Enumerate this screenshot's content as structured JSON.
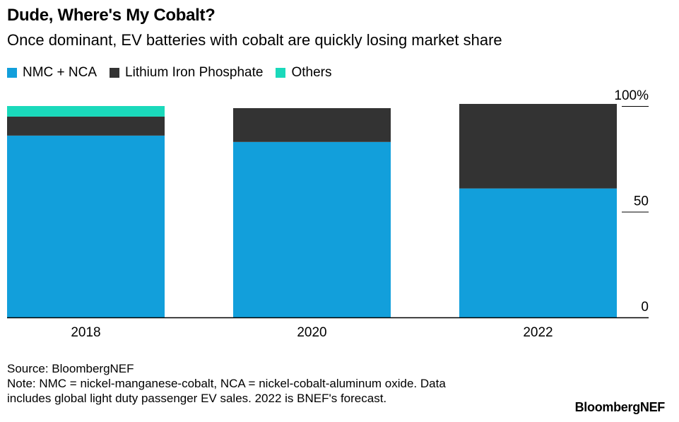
{
  "header": {
    "title": "Dude, Where's My Cobalt?",
    "subtitle": "Once dominant, EV batteries with cobalt are quickly losing market share"
  },
  "legend": [
    {
      "label": "NMC + NCA",
      "color": "#129fdb"
    },
    {
      "label": "Lithium Iron Phosphate",
      "color": "#333333"
    },
    {
      "label": "Others",
      "color": "#1ad9bb"
    }
  ],
  "chart_data": {
    "type": "bar",
    "stacked": true,
    "categories": [
      "2018",
      "2020",
      "2022"
    ],
    "series": [
      {
        "name": "NMC + NCA",
        "color": "#129fdb",
        "values": [
          86,
          83,
          61
        ]
      },
      {
        "name": "Lithium Iron Phosphate",
        "color": "#333333",
        "values": [
          9,
          16,
          40
        ]
      },
      {
        "name": "Others",
        "color": "#1ad9bb",
        "values": [
          5,
          0,
          0
        ]
      }
    ],
    "title": "Dude, Where's My Cobalt?",
    "subtitle": "Once dominant, EV batteries with cobalt are quickly losing market share",
    "xlabel": "",
    "ylabel": "",
    "ylim": [
      0,
      100
    ],
    "yticks": [
      {
        "value": 0,
        "label": "0"
      },
      {
        "value": 50,
        "label": "50"
      },
      {
        "value": 100,
        "label": "100%"
      }
    ],
    "y_axis_side": "right",
    "grid": false,
    "legend_position": "top-left"
  },
  "footer": {
    "source": "Source: BloombergNEF",
    "note_line1": "Note: NMC = nickel-manganese-cobalt, NCA = nickel-cobalt-aluminum oxide. Data",
    "note_line2": "includes global light duty passenger EV sales. 2022 is BNEF's forecast.",
    "brand": "BloombergNEF"
  }
}
